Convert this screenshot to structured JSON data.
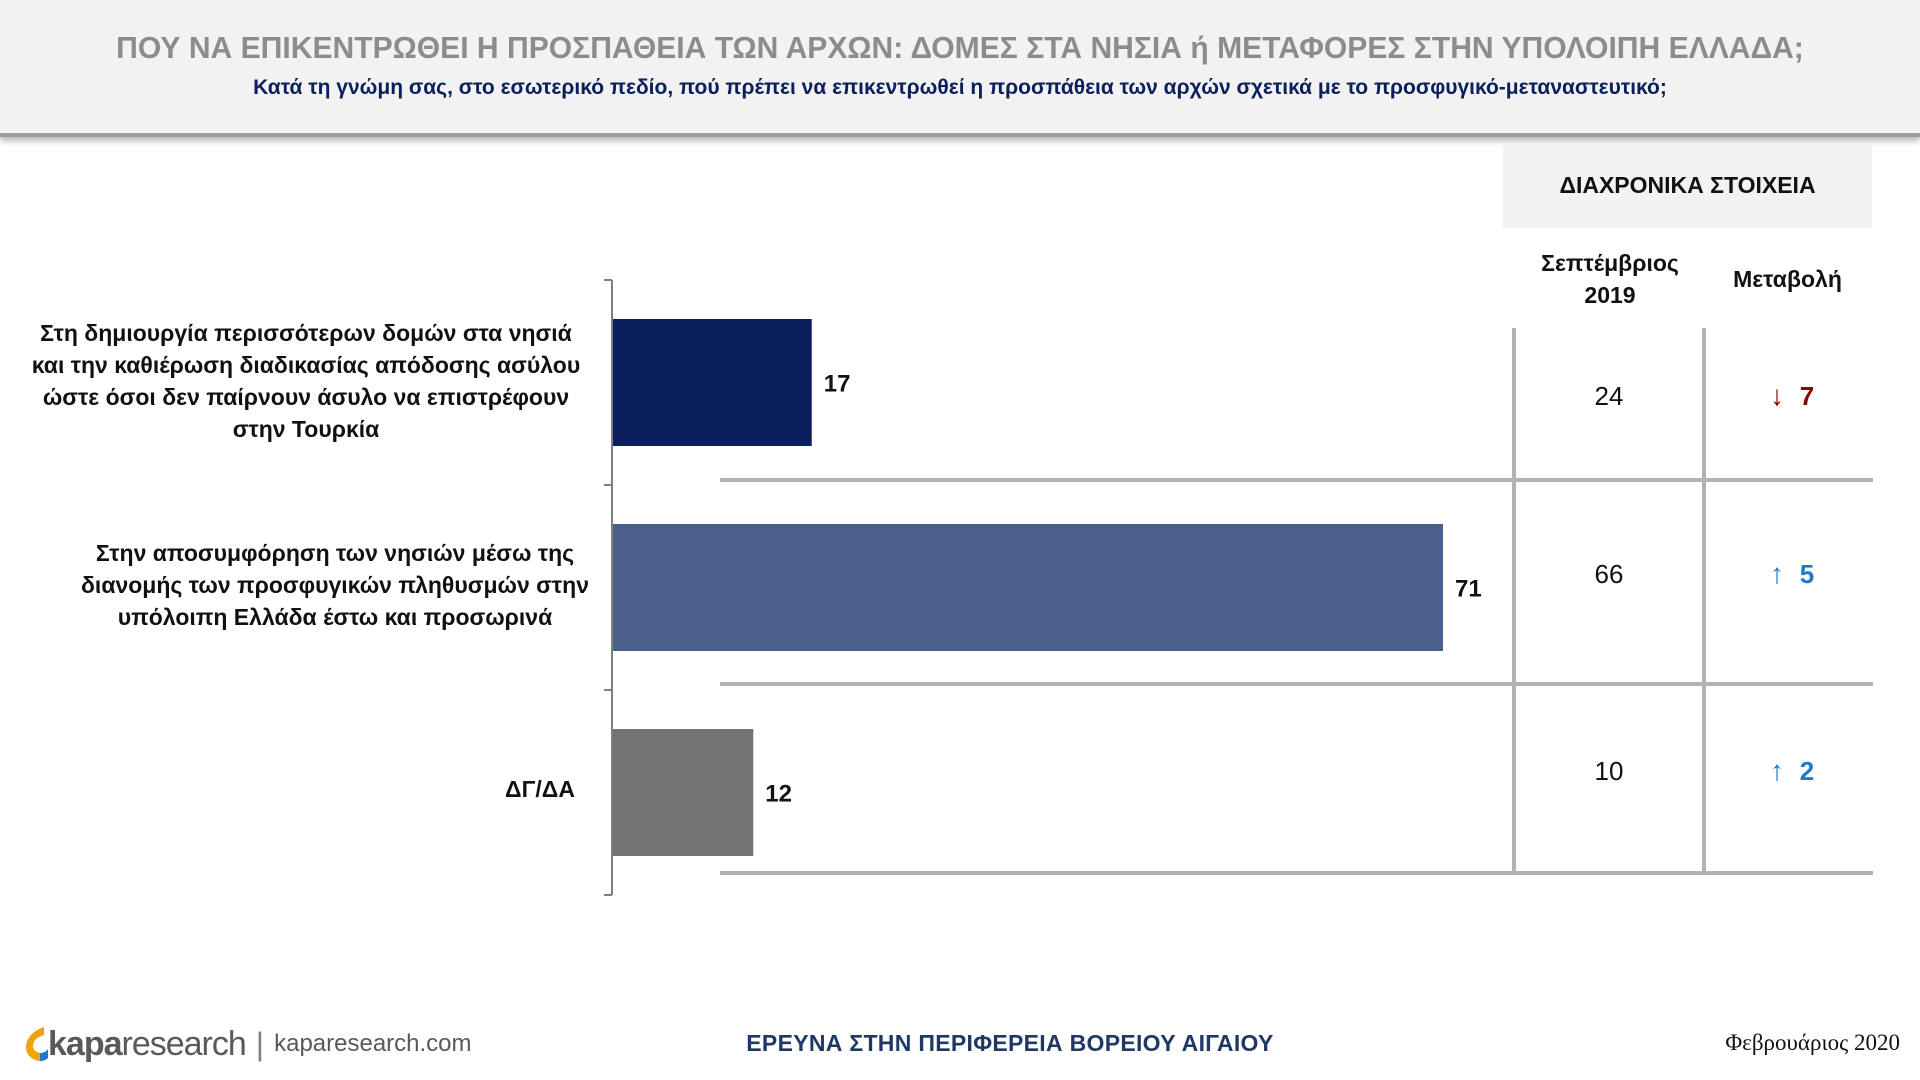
{
  "header": {
    "title": "ΠΟΥ ΝΑ ΕΠΙΚΕΝΤΡΩΘΕΙ Η ΠΡΟΣΠΑΘΕΙΑ ΤΩΝ ΑΡΧΩΝ: ΔΟΜΕΣ ΣΤΑ ΝΗΣΙΑ ή ΜΕΤΑΦΟΡΕΣ ΣΤΗΝ ΥΠΟΛΟΙΠΗ ΕΛΛΑΔΑ;",
    "subtitle": "Κατά τη γνώμη σας, στο εσωτερικό πεδίο, πού πρέπει να επικεντρωθεί η προσπάθεια των αρχών σχετικά με το προσφυγικό-μεταναστευτικό;"
  },
  "historical": {
    "title": "ΔΙΑΧΡΟΝΙΚΑ ΣΤΟΙΧΕΙΑ",
    "col_period": [
      "Σεπτέμβριος",
      "2019"
    ],
    "col_change": "Μεταβολή",
    "rows": [
      {
        "previous": "24",
        "direction": "down",
        "change": "7",
        "arrow": "↓"
      },
      {
        "previous": "66",
        "direction": "up",
        "change": "5",
        "arrow": "↑"
      },
      {
        "previous": "10",
        "direction": "up",
        "change": "2",
        "arrow": "↑"
      }
    ],
    "colors": {
      "down": "#8b0000",
      "up": "#1f78c8"
    }
  },
  "chart_data": {
    "type": "bar",
    "orientation": "horizontal",
    "categories": [
      [
        "Στη δημιουργία περισσότερων δομών στα νησιά",
        "και την καθιέρωση διαδικασίας απόδοσης ασύλου",
        "ώστε όσοι δεν παίρνουν άσυλο να επιστρέφουν",
        "στην Τουρκία"
      ],
      [
        "Στην αποσυμφόρηση των νησιών μέσω της",
        "διανομής των προσφυγικών πληθυσμών στην",
        "υπόλοιπη Ελλάδα έστω και προσωρινά"
      ],
      [
        "ΔΓ/ΔΑ"
      ]
    ],
    "values": [
      17,
      71,
      12
    ],
    "value_labels": [
      "17",
      "71",
      "12"
    ],
    "colors": [
      "#0b1f5c",
      "#4a608a",
      "#737373"
    ],
    "xlim": [
      0,
      71
    ],
    "grid": false,
    "legend": "none"
  },
  "footer": {
    "logo_kapa": "kapa",
    "logo_research": "research",
    "logo_separator": "|",
    "logo_url": "kaparesearch.com",
    "center": "ΕΡΕΥΝΑ ΣΤΗΝ ΠΕΡΙΦΕΡΕΙΑ ΒΟΡΕΙΟΥ ΑΙΓΑΙΟΥ",
    "date": "Φεβρουάριος 2020"
  }
}
